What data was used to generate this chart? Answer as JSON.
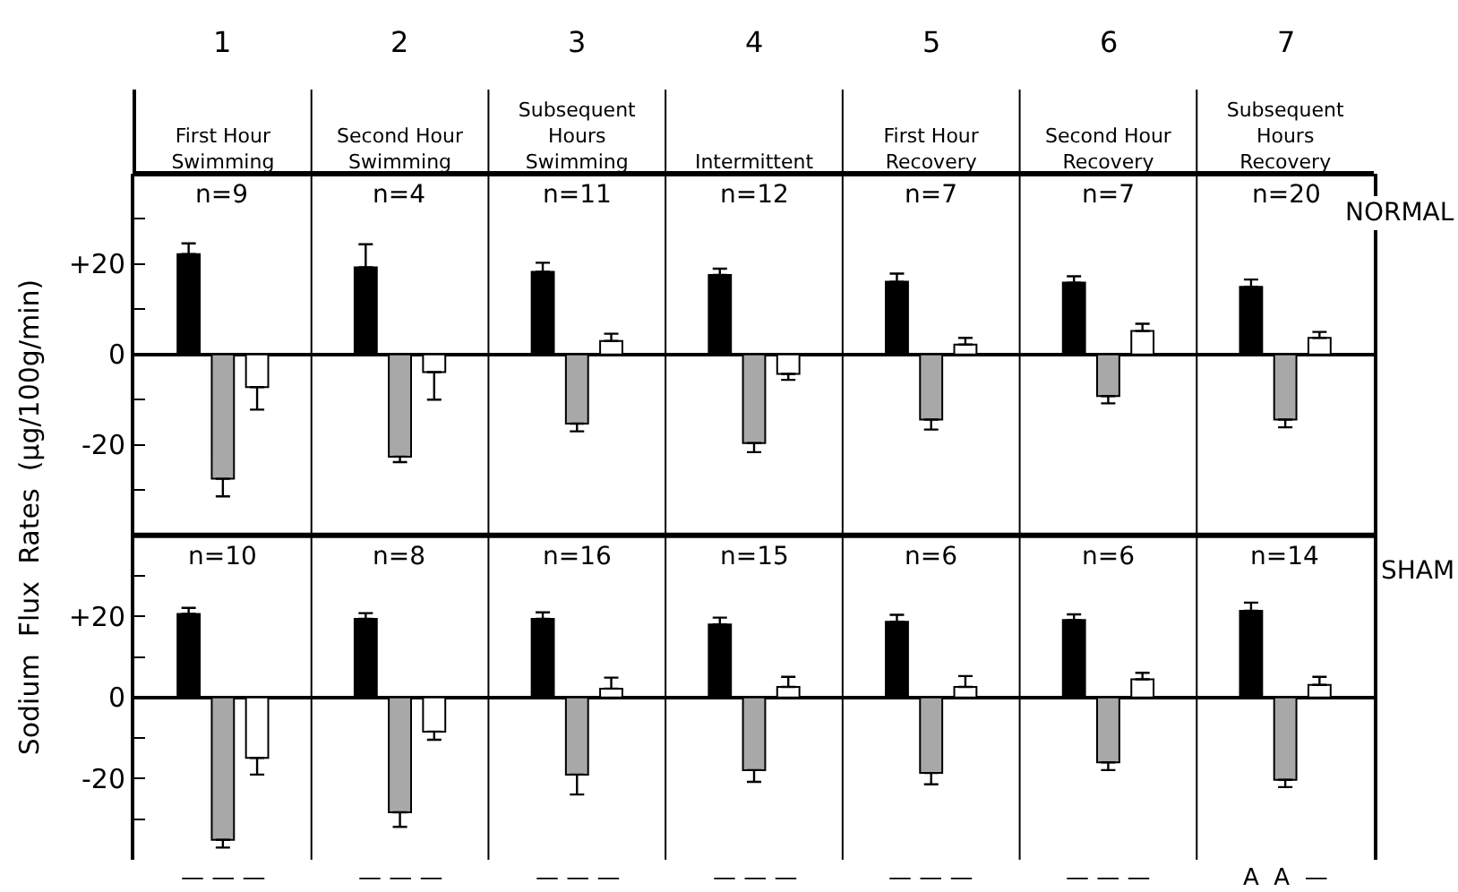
{
  "chart_data": [
    {
      "type": "bar",
      "title": "NORMAL",
      "ylabel": "Sodium  Flux  Rates  (µg/100g/min)",
      "categories": [
        "First Hour\nSwimming",
        "Second Hour\nSwimming",
        "Subsequent\nHours\nSwimming",
        "Intermittent",
        "First Hour\nRecovery",
        "Second Hour\nRecovery",
        "Subsequent\nHours\nRecovery"
      ],
      "series": [
        {
          "color": "#000000",
          "values": [
            22.2,
            19.3,
            18.3,
            17.6,
            16.1,
            15.9,
            15.0
          ],
          "errors": [
            [
              22.2,
              24.6
            ],
            [
              19.3,
              24.4
            ],
            [
              18.3,
              20.3
            ],
            [
              17.6,
              19.0
            ],
            [
              16.1,
              17.9
            ],
            [
              15.9,
              17.3
            ],
            [
              15.0,
              16.6
            ]
          ]
        },
        {
          "color": "#a8a8a8",
          "values": [
            -27.5,
            -22.6,
            -15.3,
            -19.6,
            -14.4,
            -9.2,
            -14.4
          ],
          "errors": [
            [
              -31.4,
              -27.5
            ],
            [
              -23.8,
              -22.6
            ],
            [
              -17.0,
              -15.3
            ],
            [
              -21.6,
              -19.6
            ],
            [
              -16.6,
              -14.4
            ],
            [
              -10.8,
              -9.2
            ],
            [
              -16.1,
              -14.4
            ]
          ]
        },
        {
          "color": "#ffffff",
          "values": [
            -7.2,
            -3.9,
            3.0,
            -4.3,
            2.2,
            5.2,
            3.7
          ],
          "errors": [
            [
              -12.2,
              -7.2
            ],
            [
              -10.0,
              -3.9
            ],
            [
              3.0,
              4.6
            ],
            [
              -5.6,
              -4.3
            ],
            [
              2.2,
              3.7
            ],
            [
              5.2,
              6.8
            ],
            [
              3.7,
              5.0
            ]
          ]
        }
      ],
      "ylim": [
        -40,
        40
      ],
      "yticks": [
        {
          "value": 30,
          "label": null
        },
        {
          "value": 20,
          "label": "+20"
        },
        {
          "value": 10,
          "label": null
        },
        0,
        {
          "value": -10,
          "label": null
        },
        -20,
        {
          "value": -30,
          "label": null
        }
      ],
      "annotations": [
        "1",
        "2",
        "3",
        "4",
        "5",
        "6",
        "7",
        "n=9",
        "n=4",
        "n=11",
        "n=12",
        "n=7",
        "n=7",
        "n=20"
      ]
    },
    {
      "type": "bar",
      "title": "SHAM",
      "categories": [
        null,
        null,
        null,
        null,
        null,
        null,
        null
      ],
      "tick_labels": "y",
      "series": [
        {
          "color": "#000000",
          "values": [
            20.6,
            19.4,
            19.4,
            18.0,
            18.7,
            19.1,
            21.4
          ],
          "errors": [
            [
              20.6,
              22.1
            ],
            [
              19.4,
              20.8
            ],
            [
              19.4,
              21.0
            ],
            [
              18.0,
              19.7
            ],
            [
              18.7,
              20.4
            ],
            [
              19.1,
              20.5
            ],
            [
              21.4,
              23.4
            ]
          ]
        },
        {
          "color": "#a8a8a8",
          "values": [
            -35.1,
            -28.3,
            -19.0,
            -17.9,
            -18.6,
            -16.0,
            -20.3
          ],
          "errors": [
            [
              -37.0,
              -35.1
            ],
            [
              -31.9,
              -28.3
            ],
            [
              -23.9,
              -19.0
            ],
            [
              -20.8,
              -17.9
            ],
            [
              -21.4,
              -18.6
            ],
            [
              -17.9,
              -16.0
            ],
            [
              -22.1,
              -20.3
            ]
          ]
        },
        {
          "color": "#ffffff",
          "values": [
            -14.9,
            -8.4,
            2.2,
            2.6,
            2.6,
            4.5,
            3.1
          ],
          "errors": [
            [
              -19.0,
              -14.9
            ],
            [
              -10.4,
              -8.4
            ],
            [
              2.2,
              4.9
            ],
            [
              2.6,
              5.1
            ],
            [
              2.6,
              5.3
            ],
            [
              4.5,
              6.1
            ],
            [
              3.1,
              5.1
            ]
          ]
        }
      ],
      "ylim": [
        -40,
        40
      ],
      "yticks": [
        {
          "value": 30,
          "label": null
        },
        {
          "value": 20,
          "label": "+20"
        },
        {
          "value": 10,
          "label": null
        },
        0,
        {
          "value": -10,
          "label": null
        },
        -20,
        {
          "value": -30,
          "label": null
        }
      ],
      "annotations": [
        "— — —",
        "— — —",
        "— — —",
        "— — —",
        "— — —",
        "— — —",
        "A  A  —",
        "n=10",
        "n=8",
        "n=16",
        "n=15",
        "n=6",
        "n=6",
        "n=14"
      ]
    }
  ]
}
